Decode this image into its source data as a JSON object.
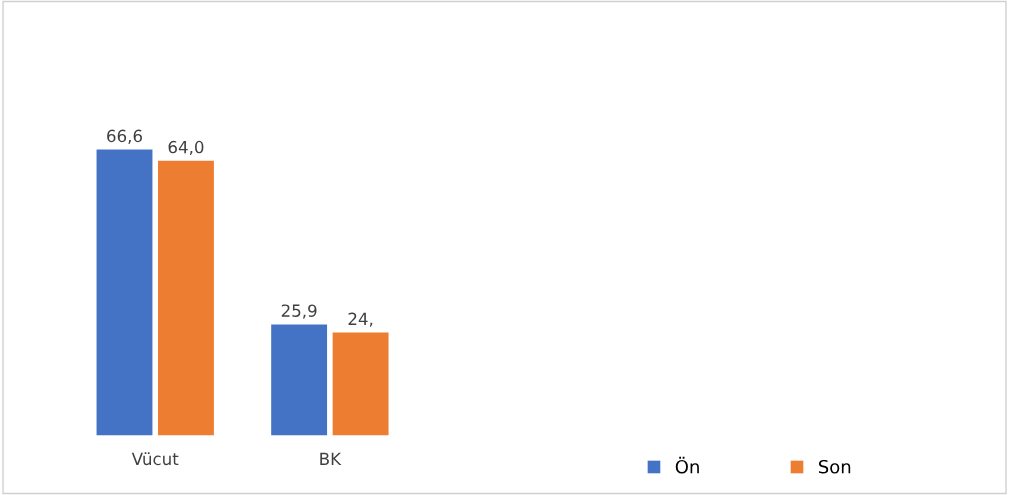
{
  "chart_data": {
    "type": "bar",
    "categories": [
      "Vücut",
      "BK"
    ],
    "series": [
      {
        "name": "Ön",
        "color": "#4472c4",
        "values": [
          66.6,
          25.9
        ],
        "value_labels": [
          "66,6",
          "25,9"
        ]
      },
      {
        "name": "Son",
        "color": "#ed7d31",
        "values": [
          64.0,
          24
        ],
        "value_labels": [
          "64,0",
          "24,"
        ]
      }
    ],
    "legend": "bottom",
    "grid": false
  }
}
